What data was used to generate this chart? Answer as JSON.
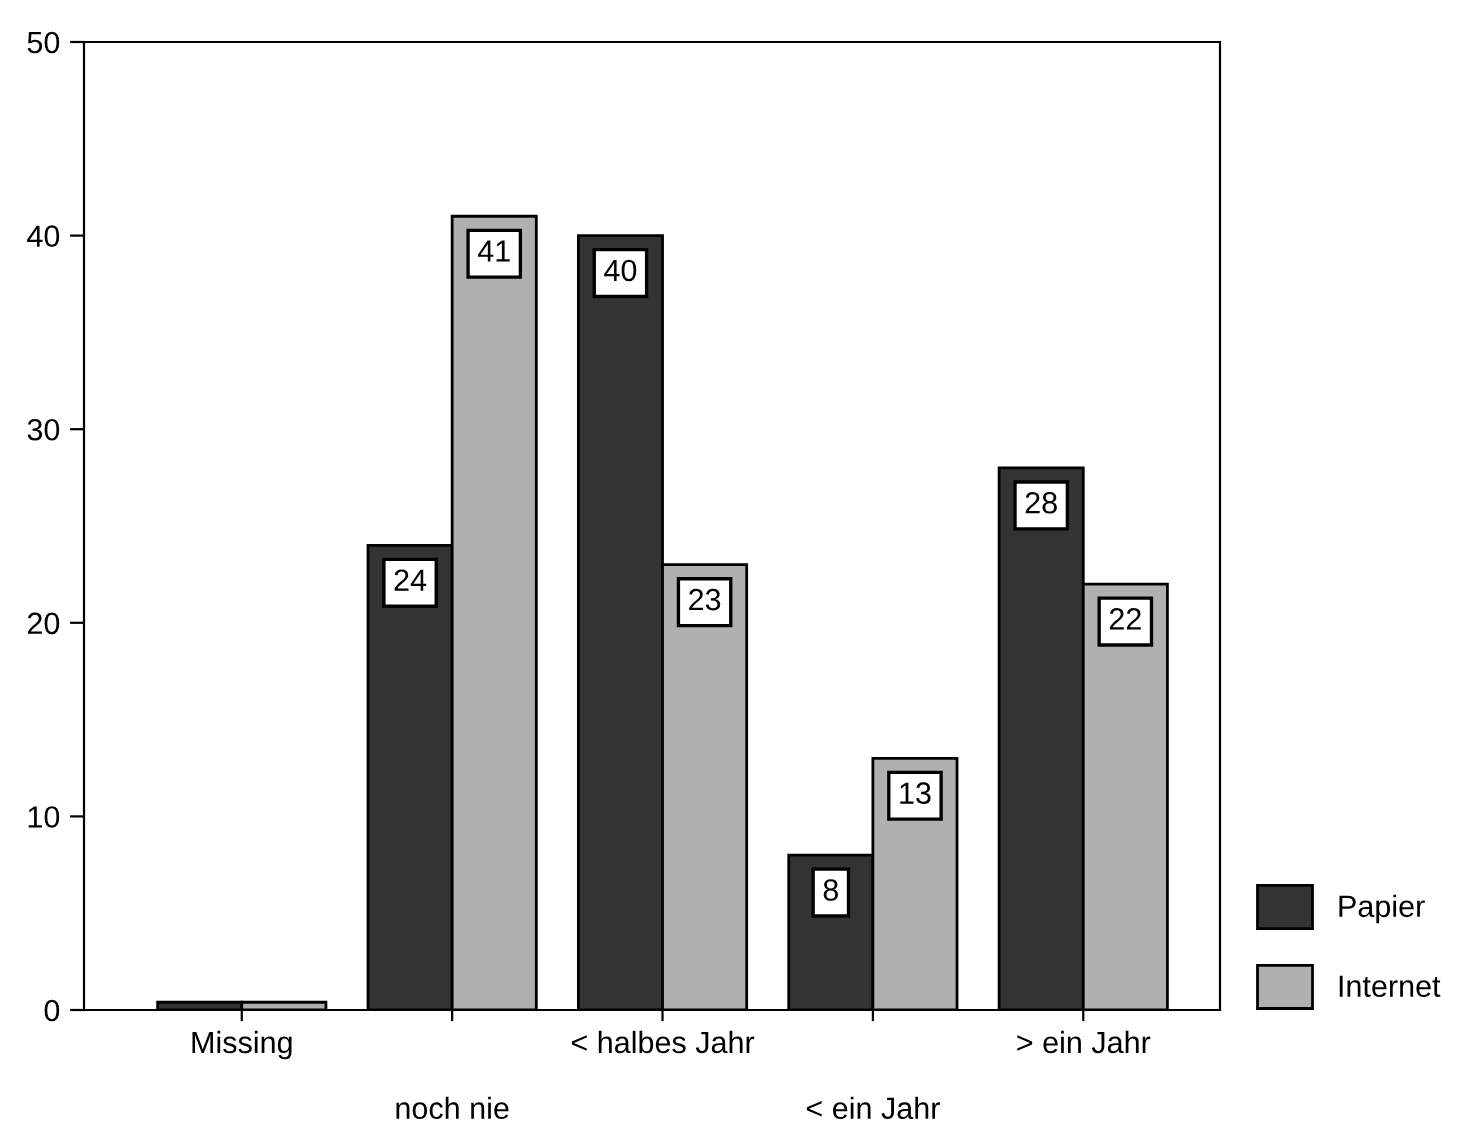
{
  "chart_data": {
    "type": "bar",
    "categories": [
      "Missing",
      "noch nie",
      "< halbes Jahr",
      "< ein Jahr",
      "> ein Jahr"
    ],
    "series": [
      {
        "name": "Papier",
        "color": "#333333",
        "values": [
          0.4,
          24,
          40,
          8,
          28
        ],
        "value_labels": [
          null,
          "24",
          "40",
          "8",
          "28"
        ]
      },
      {
        "name": "Internet",
        "color": "#b0b0b0",
        "values": [
          0.4,
          41,
          23,
          13,
          22
        ],
        "value_labels": [
          null,
          "41",
          "23",
          "13",
          "22"
        ]
      }
    ],
    "ylim": [
      0,
      50
    ],
    "yticks": [
      0,
      10,
      20,
      30,
      40,
      50
    ],
    "grid": false,
    "legend": "right"
  }
}
